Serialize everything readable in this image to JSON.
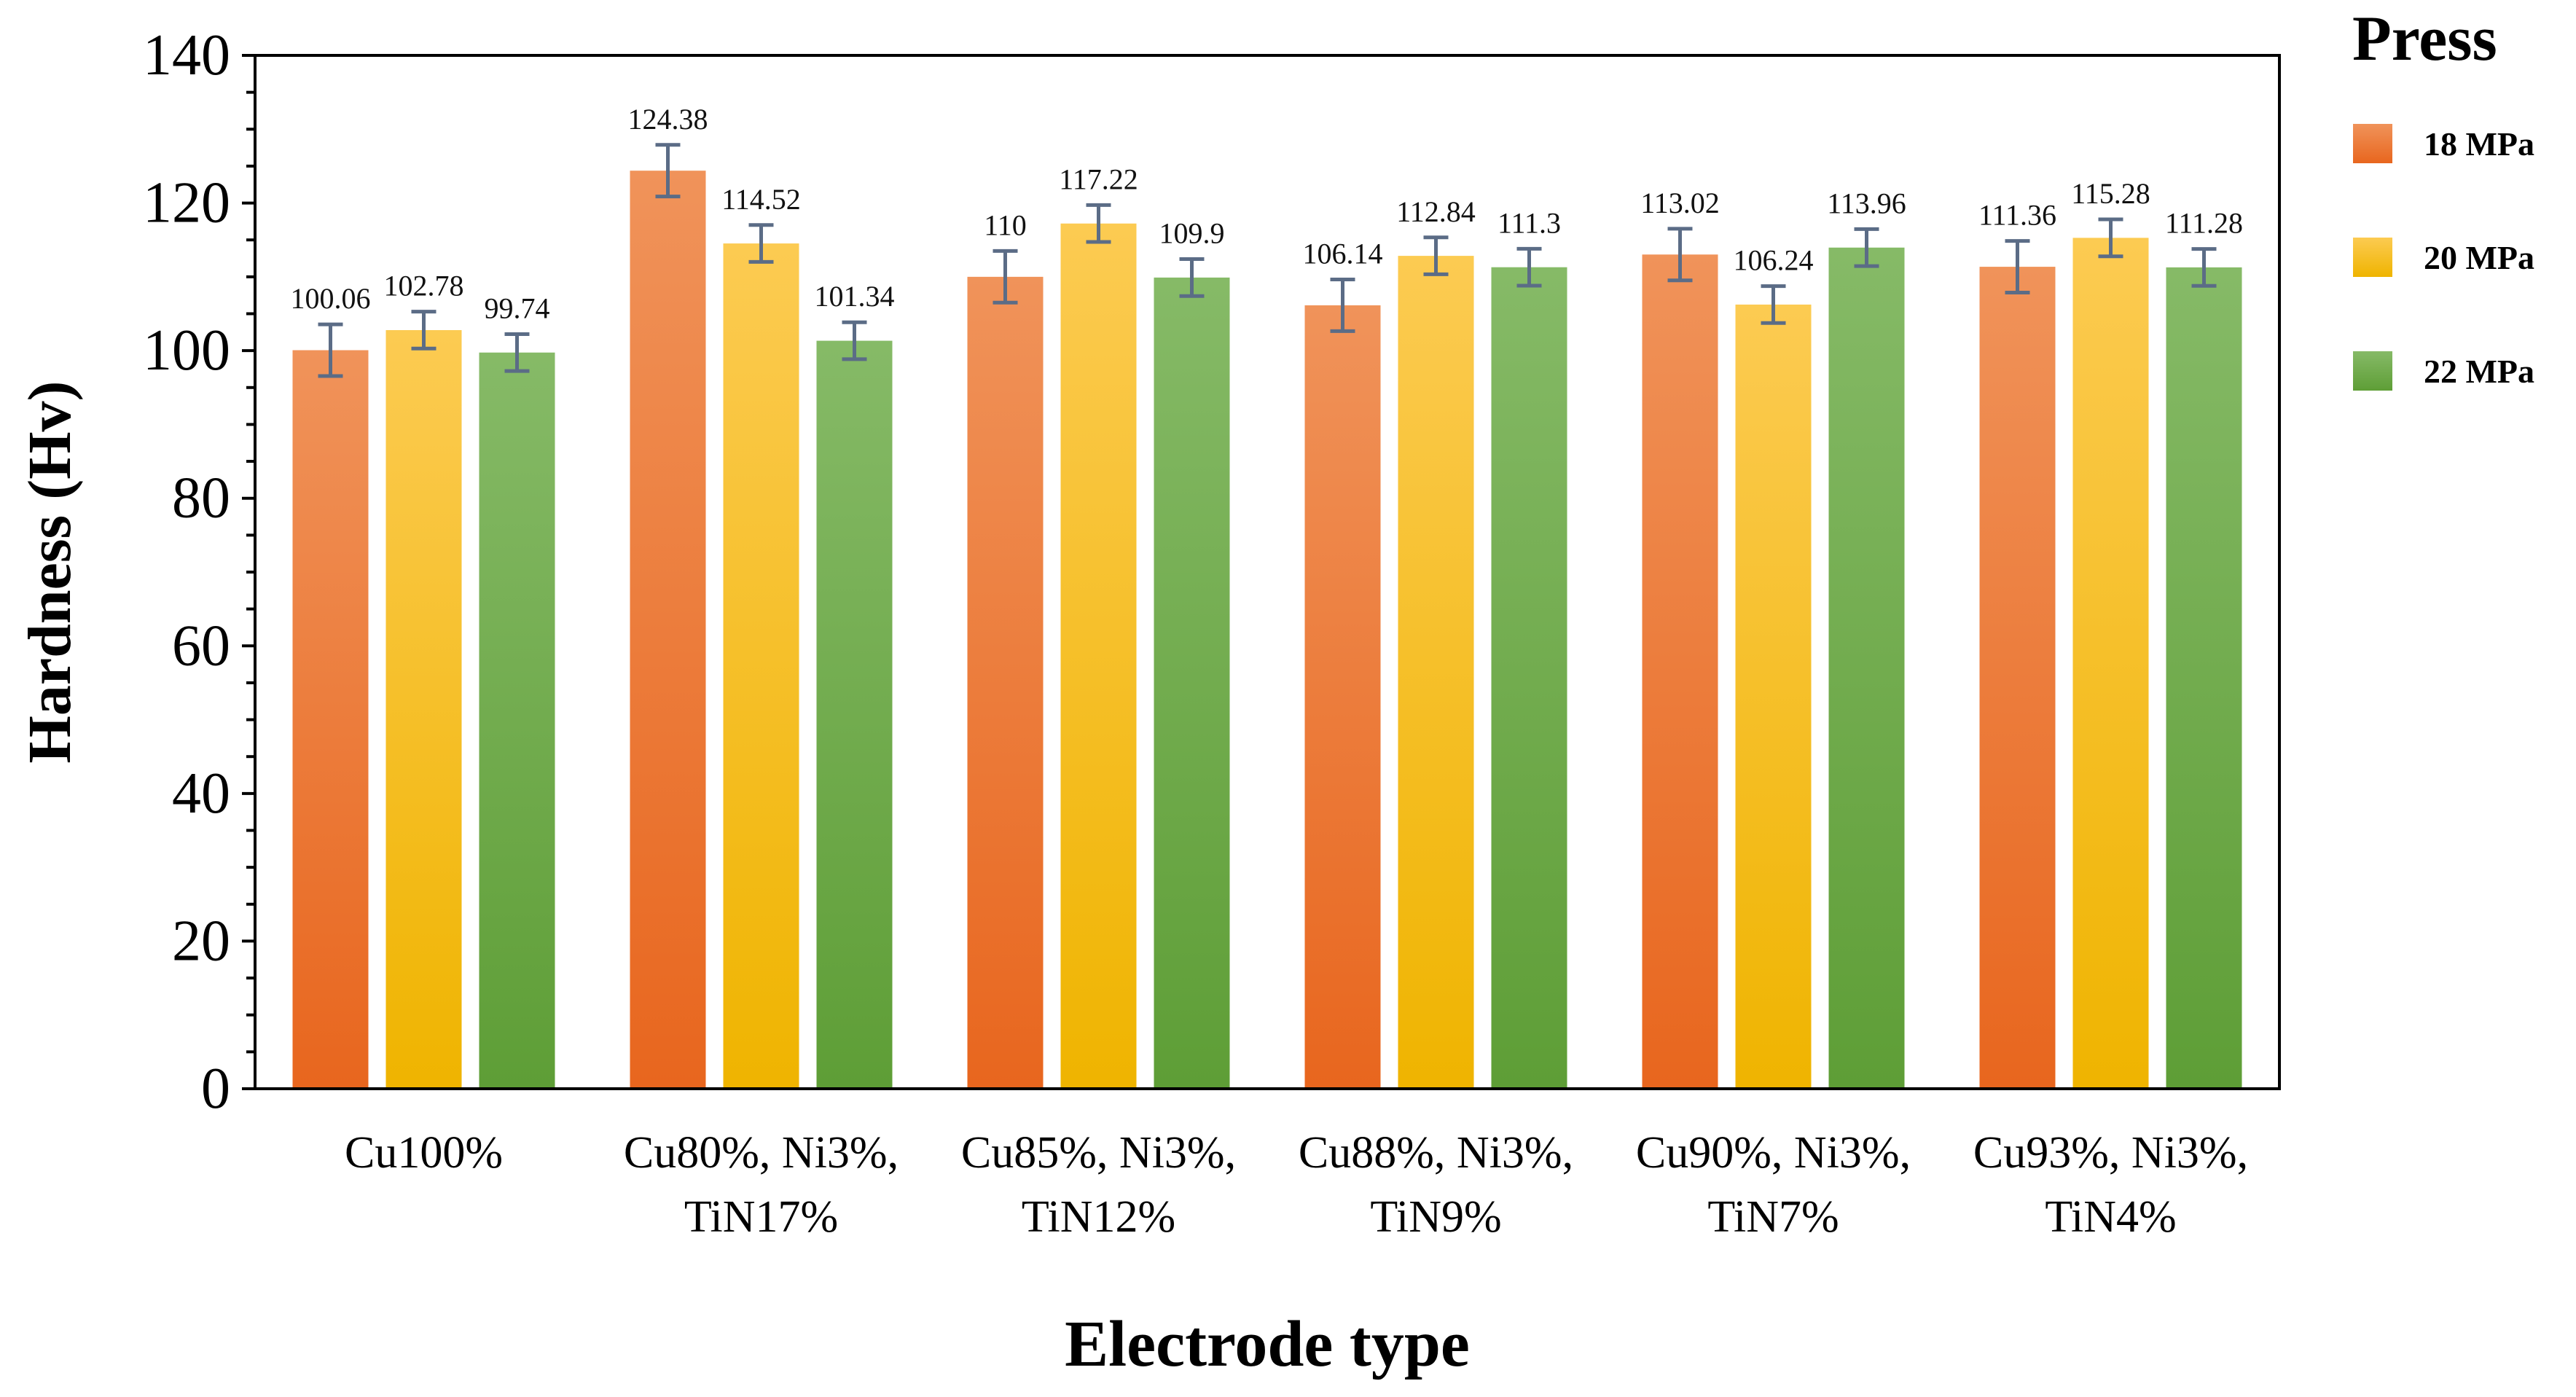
{
  "chart_data": {
    "type": "bar",
    "title": "",
    "xlabel": "Electrode type",
    "ylabel": "Hardness (Hv)",
    "ylim": [
      0,
      140
    ],
    "y_ticks": [
      "0",
      "20",
      "40",
      "60",
      "80",
      "100",
      "120",
      "140"
    ],
    "y_tick_values": [
      0,
      20,
      40,
      60,
      80,
      100,
      120,
      140
    ],
    "y_minor_step": 5,
    "grid": false,
    "legend_position": "top-right",
    "legend_title": "Press",
    "categories": [
      {
        "line1": "Cu100%",
        "line2": ""
      },
      {
        "line1": "Cu80%, Ni3%,",
        "line2": "TiN17%"
      },
      {
        "line1": "Cu85%, Ni3%,",
        "line2": "TiN12%"
      },
      {
        "line1": "Cu88%, Ni3%,",
        "line2": "TiN9%"
      },
      {
        "line1": "Cu90%, Ni3%,",
        "line2": "TiN7%"
      },
      {
        "line1": "Cu93%, Ni3%,",
        "line2": "TiN4%"
      }
    ],
    "series": [
      {
        "name": "18 MPa",
        "color_top": "#F0935A",
        "color_bottom": "#E8661E",
        "values": [
          100.06,
          124.38,
          110,
          106.14,
          113.02,
          111.36
        ],
        "labels": [
          "100.06",
          "124.38",
          "110",
          "106.14",
          "113.02",
          "111.36"
        ],
        "errors": [
          3.5,
          3.5,
          3.5,
          3.5,
          3.5,
          3.5
        ]
      },
      {
        "name": "20 MPa",
        "color_top": "#FCCB52",
        "color_bottom": "#EFB400",
        "values": [
          102.78,
          114.52,
          117.22,
          112.84,
          106.24,
          115.28
        ],
        "labels": [
          "102.78",
          "114.52",
          "117.22",
          "112.84",
          "106.24",
          "115.28"
        ],
        "errors": [
          2.5,
          2.5,
          2.5,
          2.5,
          2.5,
          2.5
        ]
      },
      {
        "name": "22 MPa",
        "color_top": "#86BA67",
        "color_bottom": "#5E9E36",
        "values": [
          99.74,
          101.34,
          109.9,
          111.3,
          113.96,
          111.28
        ],
        "labels": [
          "99.74",
          "101.34",
          "109.9",
          "111.3",
          "113.96",
          "111.28"
        ],
        "errors": [
          2.5,
          2.5,
          2.5,
          2.5,
          2.5,
          2.5
        ]
      }
    ],
    "error_bar_color": "#5B6C86"
  }
}
